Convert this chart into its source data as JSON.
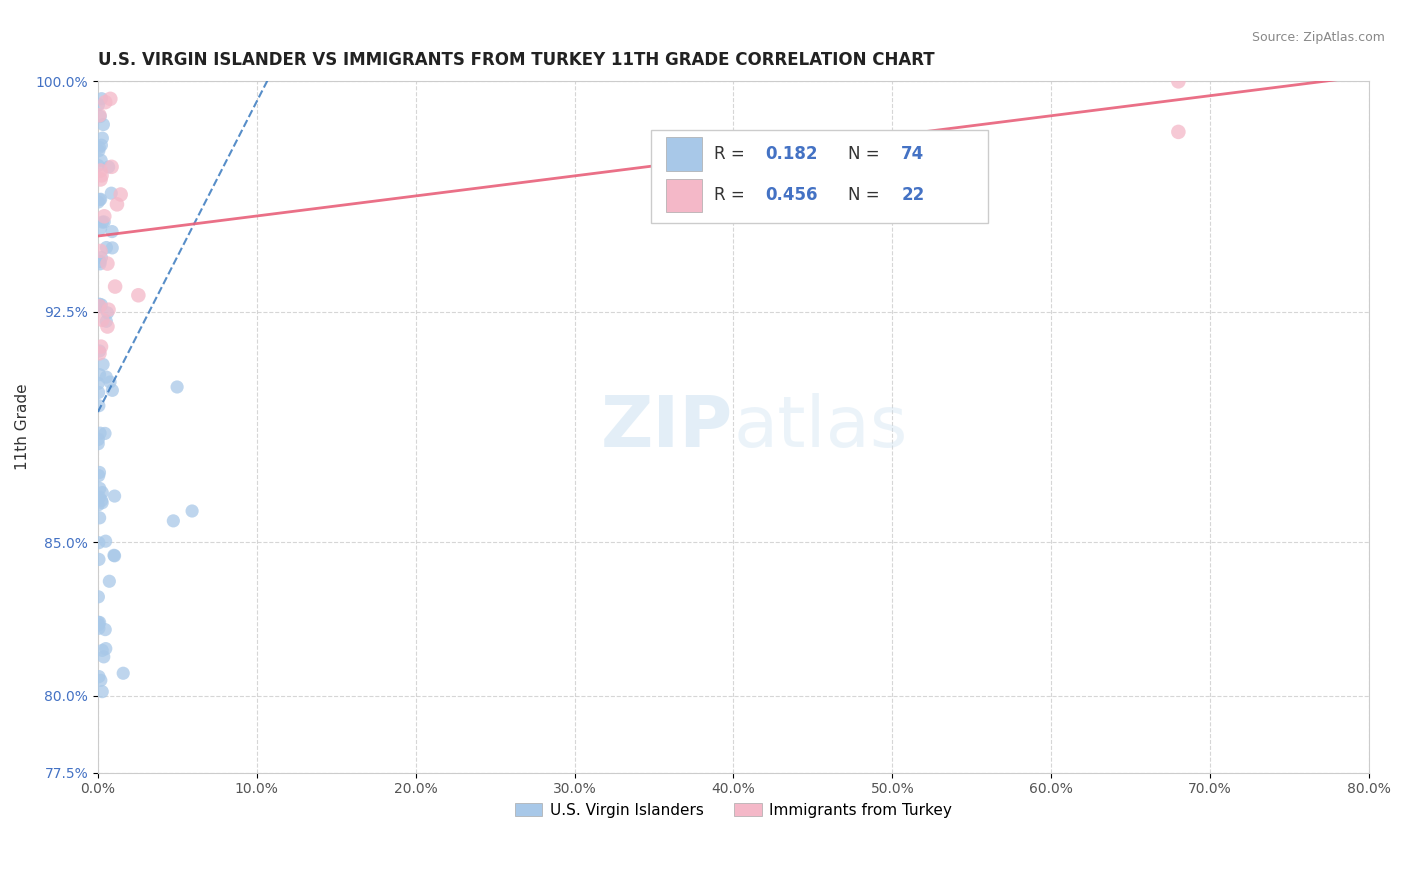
{
  "title": "U.S. VIRGIN ISLANDER VS IMMIGRANTS FROM TURKEY 11TH GRADE CORRELATION CHART",
  "source": "Source: ZipAtlas.com",
  "ylabel": "11th Grade",
  "xlim": [
    0.0,
    80.0
  ],
  "ylim": [
    77.5,
    100.0
  ],
  "xtick_vals": [
    0.0,
    10.0,
    20.0,
    30.0,
    40.0,
    50.0,
    60.0,
    70.0,
    80.0
  ],
  "ytick_vals": [
    77.5,
    80.0,
    85.0,
    92.5,
    100.0
  ],
  "ytick_labels": [
    "77.5%",
    "80.0%",
    "85.0%",
    "92.5%",
    "100.0%"
  ],
  "xtick_labels": [
    "0.0%",
    "10.0%",
    "20.0%",
    "30.0%",
    "40.0%",
    "50.0%",
    "60.0%",
    "70.0%",
    "80.0%"
  ],
  "legend_R_blue": "0.182",
  "legend_N_blue": "74",
  "legend_R_pink": "0.456",
  "legend_N_pink": "22",
  "blue_color": "#a8c8e8",
  "pink_color": "#f4b8c8",
  "blue_line_color": "#3a7abf",
  "pink_line_color": "#e8607a",
  "watermark_color": "#c8dff0",
  "title_color": "#222222",
  "source_color": "#888888",
  "ylabel_color": "#333333",
  "ytick_color": "#4472c4",
  "xtick_color": "#555555",
  "grid_color": "#cccccc",
  "legend_text_color": "#333333",
  "legend_num_color": "#4472c4"
}
